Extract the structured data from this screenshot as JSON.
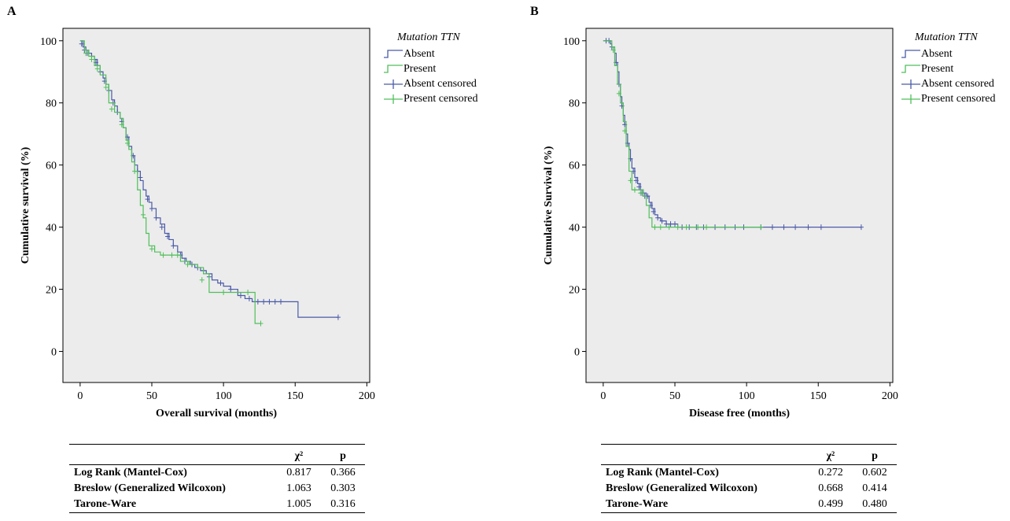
{
  "colors": {
    "absent": "#4a5aa8",
    "present": "#4fbf5a",
    "plot_bg": "#ececec"
  },
  "panels": [
    {
      "letter": "A",
      "legend": {
        "title": "Mutation TTN",
        "items": [
          "Absent",
          "Present",
          "Absent censored",
          "Present censored"
        ]
      },
      "stats": {
        "headers": [
          "",
          "χ²",
          "p"
        ],
        "rows": [
          {
            "test": "Log Rank (Mantel-Cox)",
            "chi2": "0.817",
            "p": "0.366"
          },
          {
            "test": "Breslow (Generalized Wilcoxon)",
            "chi2": "1.063",
            "p": "0.303"
          },
          {
            "test": "Tarone-Ware",
            "chi2": "1.005",
            "p": "0.316"
          }
        ]
      }
    },
    {
      "letter": "B",
      "legend": {
        "title": "Mutation TTN",
        "items": [
          "Absent",
          "Present",
          "Absent censored",
          "Present censored"
        ]
      },
      "stats": {
        "headers": [
          "",
          "χ²",
          "p"
        ],
        "rows": [
          {
            "test": "Log Rank (Mantel-Cox)",
            "chi2": "0.272",
            "p": "0.602"
          },
          {
            "test": "Breslow (Generalized Wilcoxon)",
            "chi2": "0.668",
            "p": "0.414"
          },
          {
            "test": "Tarone-Ware",
            "chi2": "0.499",
            "p": "0.480"
          }
        ]
      }
    }
  ],
  "chart_data": [
    {
      "type": "line",
      "title": "",
      "xlabel": "Overall survival (months)",
      "ylabel": "Cumulative survival (%)",
      "xlim": [
        -12,
        202
      ],
      "ylim": [
        -10,
        104
      ],
      "xticks": [
        0,
        50,
        100,
        150,
        200
      ],
      "yticks": [
        0,
        20,
        40,
        60,
        80,
        100
      ],
      "grid": false,
      "legend_position": "outside-right",
      "series": [
        {
          "name": "Absent",
          "x": [
            0,
            2,
            4,
            6,
            8,
            10,
            12,
            14,
            16,
            18,
            20,
            22,
            24,
            26,
            28,
            30,
            32,
            34,
            36,
            38,
            40,
            42,
            44,
            46,
            48,
            50,
            53,
            56,
            59,
            62,
            65,
            68,
            71,
            74,
            77,
            80,
            84,
            88,
            92,
            96,
            100,
            105,
            110,
            115,
            120,
            130,
            140,
            152,
            180
          ],
          "y": [
            100,
            98,
            97,
            96,
            95,
            94,
            92,
            90,
            88,
            86,
            84,
            81,
            79,
            77,
            75,
            72,
            69,
            66,
            63,
            60,
            58,
            55,
            52,
            50,
            48,
            46,
            43,
            41,
            38,
            36,
            34,
            32,
            30,
            29,
            28,
            27,
            26,
            25,
            23,
            22,
            21,
            20,
            18,
            17,
            16,
            16,
            16,
            11,
            11
          ],
          "censored_x": [
            1,
            3,
            5,
            8,
            11,
            14,
            17,
            20,
            23,
            26,
            29,
            33,
            37,
            40,
            42,
            47,
            50,
            53,
            57,
            61,
            65,
            70,
            73,
            78,
            82,
            86,
            90,
            98,
            105,
            112,
            118,
            124,
            128,
            132,
            136,
            140,
            180
          ],
          "censored_y": [
            99,
            97,
            96,
            95,
            93,
            90,
            87,
            84,
            80,
            77,
            74,
            69,
            63,
            58,
            56,
            49,
            46,
            43,
            40,
            37,
            34,
            31,
            29,
            28,
            27,
            26,
            24,
            22,
            20,
            18,
            17,
            16,
            16,
            16,
            16,
            16,
            11
          ]
        },
        {
          "name": "Present",
          "x": [
            0,
            3,
            6,
            10,
            14,
            18,
            20,
            24,
            28,
            30,
            32,
            34,
            36,
            38,
            40,
            42,
            44,
            46,
            48,
            52,
            56,
            60,
            66,
            70,
            76,
            82,
            86,
            90,
            100,
            110,
            118,
            122,
            126
          ],
          "y": [
            100,
            97,
            95,
            92,
            89,
            86,
            80,
            77,
            75,
            72,
            68,
            65,
            61,
            58,
            52,
            47,
            43,
            38,
            34,
            32,
            31,
            31,
            31,
            29,
            28,
            27,
            25,
            19,
            19,
            19,
            19,
            9,
            9
          ],
          "censored_x": [
            4,
            8,
            12,
            18,
            22,
            29,
            33,
            38,
            44,
            50,
            58,
            64,
            68,
            75,
            85,
            100,
            117,
            126
          ],
          "censored_y": [
            96,
            94,
            91,
            85,
            78,
            73,
            67,
            58,
            44,
            33,
            31,
            31,
            31,
            28,
            23,
            19,
            19,
            9
          ]
        }
      ]
    },
    {
      "type": "line",
      "title": "",
      "xlabel": "Disease free (months)",
      "ylabel": "Cumulative Survival (%)",
      "xlim": [
        -12,
        202
      ],
      "ylim": [
        -10,
        104
      ],
      "xticks": [
        0,
        50,
        100,
        150,
        200
      ],
      "yticks": [
        0,
        20,
        40,
        60,
        80,
        100
      ],
      "grid": false,
      "legend_position": "outside-right",
      "series": [
        {
          "name": "Absent",
          "x": [
            0,
            3,
            5,
            6,
            8,
            9,
            10,
            11,
            12,
            13,
            14,
            15,
            16,
            17,
            18,
            19,
            20,
            22,
            24,
            26,
            28,
            30,
            32,
            34,
            36,
            38,
            40,
            44,
            48,
            52,
            180
          ],
          "y": [
            100,
            100,
            99,
            98,
            96,
            93,
            90,
            86,
            82,
            79,
            76,
            73,
            70,
            67,
            65,
            62,
            59,
            56,
            54,
            52,
            51,
            50,
            48,
            46,
            44,
            43,
            42,
            41,
            41,
            40,
            40
          ],
          "censored_x": [
            2,
            4,
            6,
            9,
            11,
            13,
            15,
            17,
            19,
            21,
            23,
            25,
            27,
            29,
            31,
            33,
            35,
            38,
            41,
            44,
            47,
            50,
            55,
            60,
            65,
            70,
            78,
            85,
            92,
            98,
            110,
            118,
            126,
            134,
            143,
            152,
            180
          ],
          "censored_y": [
            100,
            100,
            98,
            93,
            86,
            79,
            73,
            67,
            62,
            58,
            55,
            53,
            51,
            50,
            50,
            47,
            45,
            43,
            42,
            41,
            41,
            41,
            40,
            40,
            40,
            40,
            40,
            40,
            40,
            40,
            40,
            40,
            40,
            40,
            40,
            40,
            40
          ]
        },
        {
          "name": "Present",
          "x": [
            0,
            6,
            8,
            10,
            12,
            14,
            16,
            18,
            20,
            24,
            28,
            30,
            32,
            34,
            110
          ],
          "y": [
            100,
            98,
            92,
            86,
            80,
            74,
            66,
            58,
            52,
            52,
            50,
            47,
            43,
            40,
            40
          ],
          "censored_x": [
            7,
            11,
            15,
            19,
            22,
            26,
            36,
            40,
            46,
            52,
            58,
            66,
            72,
            110
          ],
          "censored_y": [
            97,
            83,
            71,
            55,
            52,
            51,
            40,
            40,
            40,
            40,
            40,
            40,
            40,
            40
          ]
        }
      ]
    }
  ]
}
